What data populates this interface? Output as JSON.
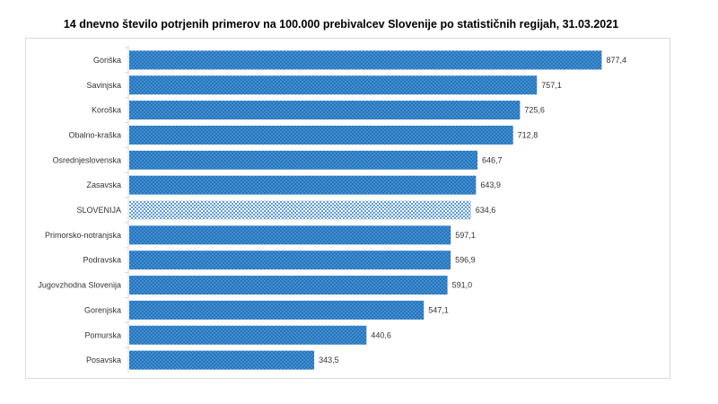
{
  "chart_data": {
    "type": "bar",
    "orientation": "horizontal",
    "title": "14 dnevno število potrjenih primerov na 100.000  prebivalcev Slovenije po statističnih regijah, 31.03.2021",
    "categories": [
      "Goriška",
      "Savinjska",
      "Koroška",
      "Obalno-kraška",
      "Osrednjeslovenska",
      "Zasavska",
      "SLOVENIJA",
      "Primorsko-notranjska",
      "Podravska",
      "Jugovzhodna Slovenija",
      "Gorenjska",
      "Pomurska",
      "Posavska"
    ],
    "values": [
      877.4,
      757.1,
      725.6,
      712.8,
      646.7,
      643.9,
      634.6,
      597.1,
      596.9,
      591.0,
      547.1,
      440.6,
      343.5
    ],
    "value_labels": [
      "877,4",
      "757,1",
      "725,6",
      "712,8",
      "646,7",
      "643,9",
      "634,6",
      "597,1",
      "596,9",
      "591,0",
      "547,1",
      "440,6",
      "343,5"
    ],
    "highlight_category": "SLOVENIJA",
    "xlim": [
      0,
      900
    ],
    "grid": false,
    "legend": "none",
    "colors": {
      "bar": "#3d8fd6",
      "dots": "#1f5f9e",
      "highlight_bg": "#ffffff",
      "highlight_dots": "#2e7bc4"
    }
  }
}
